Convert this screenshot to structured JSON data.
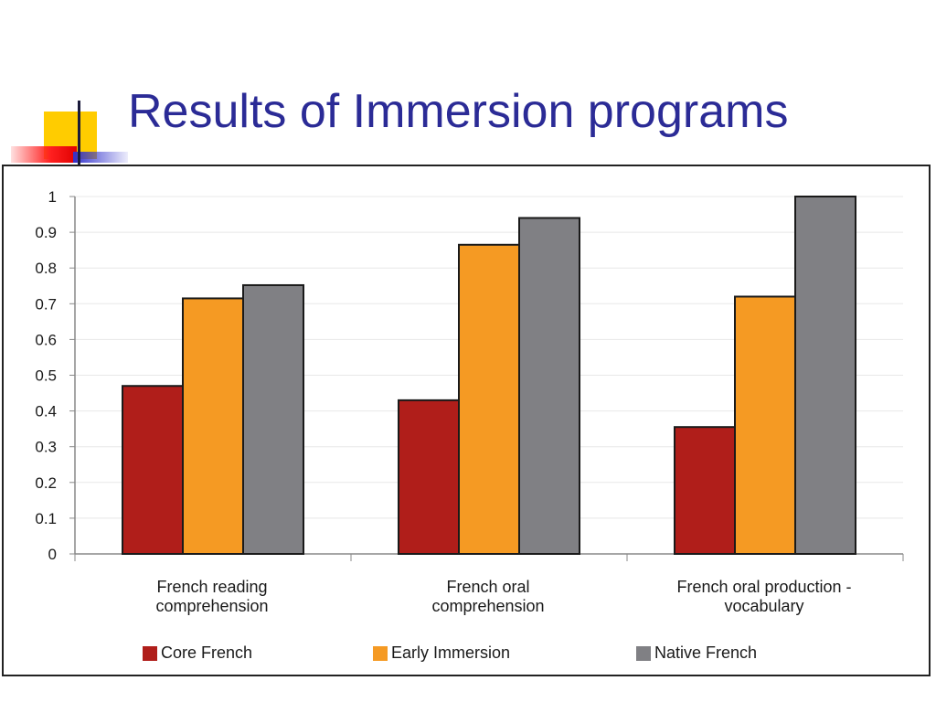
{
  "slide": {
    "title": "Results of Immersion programs"
  },
  "colors": {
    "title": "#2b2b96",
    "core_french": "#b01e1a",
    "early_immersion": "#f59a23",
    "native_french": "#808084",
    "grid": "#e8e8e8",
    "bar_outline": "#1a1a1a"
  },
  "chart_data": {
    "type": "bar",
    "title": "",
    "xlabel": "",
    "ylabel": "",
    "ylim": [
      0,
      1
    ],
    "y_ticks": [
      "0",
      "0.1",
      "0.2",
      "0.3",
      "0.4",
      "0.5",
      "0.6",
      "0.7",
      "0.8",
      "0.9",
      "1"
    ],
    "grid": true,
    "legend_position": "bottom",
    "categories": [
      [
        "French reading",
        "comprehension"
      ],
      [
        "French oral",
        "comprehension"
      ],
      [
        "French oral production -",
        "vocabulary"
      ]
    ],
    "series": [
      {
        "name": "Core French",
        "color": "#b01e1a",
        "values": [
          0.47,
          0.43,
          0.355
        ]
      },
      {
        "name": "Early Immersion",
        "color": "#f59a23",
        "values": [
          0.715,
          0.865,
          0.72
        ]
      },
      {
        "name": "Native French",
        "color": "#808084",
        "values": [
          0.752,
          0.94,
          1.0
        ]
      }
    ]
  }
}
